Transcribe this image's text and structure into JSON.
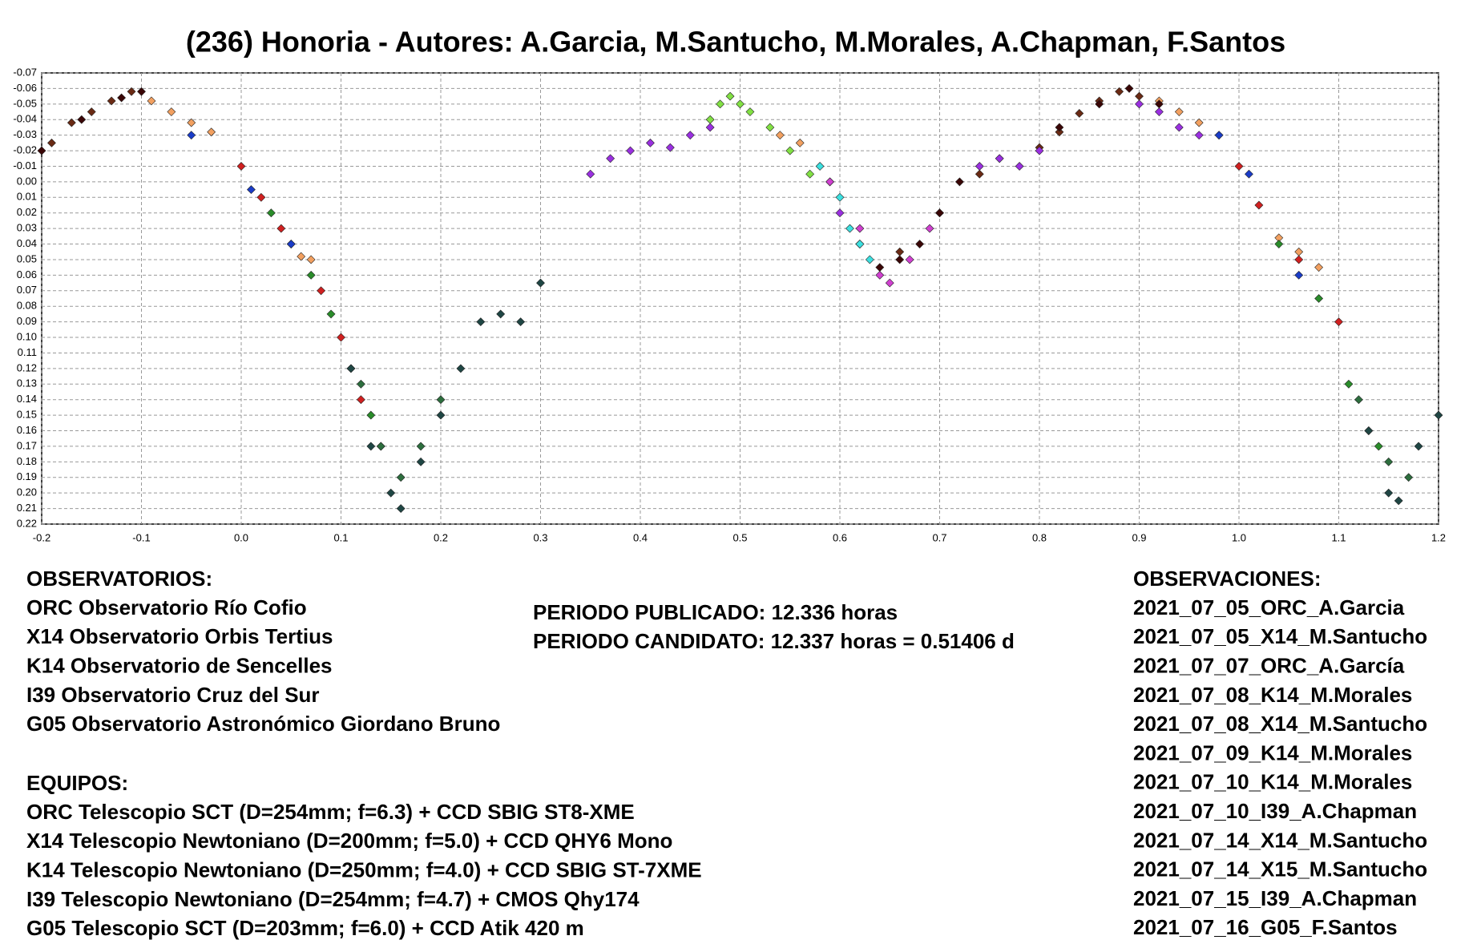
{
  "chart_data": {
    "type": "scatter",
    "title": "(236) Honoria - Autores: A.Garcia, M.Santucho, M.Morales, A.Chapman, F.Santos",
    "xlim": [
      -0.2,
      1.2
    ],
    "xticks": [
      -0.2,
      -0.1,
      {
        "value": 0,
        "label": "0.0"
      },
      0.1,
      0.2,
      0.3,
      0.4,
      0.5,
      0.6,
      0.7,
      0.8,
      0.9,
      {
        "value": 1,
        "label": "1.0"
      },
      1.1,
      1.2
    ],
    "ylim": [
      -0.07,
      0.22
    ],
    "y_inverted": true,
    "grid": true,
    "yticks": [
      -0.07,
      -0.06,
      -0.05,
      -0.04,
      -0.03,
      -0.02,
      -0.01,
      {
        "value": 0,
        "label": "0.00"
      },
      0.01,
      0.02,
      0.03,
      0.04,
      0.05,
      0.06,
      0.07,
      0.08,
      0.09,
      {
        "value": 0.1,
        "label": "0.10"
      },
      0.11,
      0.12,
      0.13,
      0.14,
      0.15,
      0.16,
      0.17,
      0.18,
      0.19,
      {
        "value": 0.2,
        "label": "0.20"
      },
      0.21,
      0.22
    ],
    "series": [
      {
        "name": "2021_07_05_ORC_A.Garcia",
        "color": "#f2a060",
        "x": [
          -0.09,
          -0.07,
          -0.05,
          -0.03,
          0.05,
          0.06,
          0.07,
          0.54,
          0.56,
          0.92,
          0.94,
          0.96,
          0.98,
          1.04,
          1.06,
          1.08
        ],
        "values": [
          -0.052,
          -0.045,
          -0.038,
          -0.032,
          0.04,
          0.048,
          0.05,
          -0.03,
          -0.025,
          -0.052,
          -0.045,
          -0.038,
          -0.03,
          0.036,
          0.045,
          0.055
        ]
      },
      {
        "name": "2021_07_05_X14_M.Santucho",
        "color": "#6a2a14",
        "x": [
          -0.19,
          -0.17,
          -0.15,
          -0.13,
          -0.11,
          0.8,
          0.82,
          0.84,
          0.86,
          0.88,
          0.9,
          0.66,
          0.7,
          0.74
        ],
        "values": [
          -0.025,
          -0.038,
          -0.045,
          -0.052,
          -0.058,
          -0.022,
          -0.032,
          -0.044,
          -0.052,
          -0.058,
          -0.055,
          0.045,
          0.02,
          -0.005
        ]
      },
      {
        "name": "2021_07_07_ORC_A.García",
        "color": "#d02020",
        "x": [
          0,
          0.02,
          0.04,
          0.08,
          0.1,
          0.12,
          0.14,
          1,
          1.02,
          1.06,
          1.1,
          1.13
        ],
        "values": [
          -0.01,
          0.01,
          0.03,
          0.07,
          0.1,
          0.14,
          0.17,
          -0.01,
          0.015,
          0.05,
          0.09,
          0.16
        ]
      },
      {
        "name": "2021_07_08_K14_M.Morales",
        "color": "#2a8c2a",
        "x": [
          0.03,
          0.05,
          0.07,
          0.09,
          0.11,
          0.13,
          1.04,
          1.08,
          1.11,
          1.14
        ],
        "values": [
          0.02,
          0.04,
          0.06,
          0.085,
          0.12,
          0.15,
          0.04,
          0.075,
          0.13,
          0.17
        ]
      },
      {
        "name": "2021_07_08_X14_M.Santucho",
        "color": "#3a0606",
        "x": [
          -0.2,
          -0.16,
          -0.12,
          -0.1,
          0.62,
          0.64,
          0.66,
          0.68,
          0.7,
          0.72,
          0.76,
          0.82,
          0.86,
          0.89,
          0.92
        ],
        "values": [
          -0.02,
          -0.04,
          -0.054,
          -0.058,
          0.04,
          0.055,
          0.05,
          0.04,
          0.02,
          0,
          -0.015,
          -0.035,
          -0.05,
          -0.06,
          -0.05
        ]
      },
      {
        "name": "2021_07_09_K14_M.Morales",
        "color": "#2d6e3e",
        "x": [
          0.12,
          0.14,
          0.16,
          0.18,
          0.2,
          1.12,
          1.15,
          1.17
        ],
        "values": [
          0.13,
          0.17,
          0.19,
          0.17,
          0.14,
          0.14,
          0.18,
          0.19
        ]
      },
      {
        "name": "2021_07_10_K14_M.Morales",
        "color": "#1f4644",
        "x": [
          0.11,
          0.13,
          0.15,
          0.16,
          0.18,
          0.2,
          0.22,
          0.24,
          0.26,
          0.28,
          0.3,
          1.13,
          1.15,
          1.16,
          1.18,
          1.2
        ],
        "values": [
          0.12,
          0.17,
          0.2,
          0.21,
          0.18,
          0.15,
          0.12,
          0.09,
          0.085,
          0.09,
          0.065,
          0.16,
          0.2,
          0.205,
          0.17,
          0.15
        ]
      },
      {
        "name": "2021_07_10_I39_A.Chapman",
        "color": "#1a3cc8",
        "x": [
          -0.05,
          0.01,
          0.05,
          0.98,
          1.01,
          1.06
        ],
        "values": [
          -0.03,
          0.005,
          0.04,
          -0.03,
          -0.005,
          0.06
        ]
      },
      {
        "name": "2021_07_14_X14_M.Santucho",
        "color": "#9a30e0",
        "x": [
          0.35,
          0.37,
          0.39,
          0.41,
          0.43,
          0.45,
          0.47,
          0.6,
          0.62,
          0.74,
          0.76,
          0.78,
          0.8,
          0.9,
          0.92,
          0.94,
          0.96
        ],
        "values": [
          -0.005,
          -0.015,
          -0.02,
          -0.025,
          -0.022,
          -0.03,
          -0.035,
          0.02,
          0.04,
          -0.01,
          -0.015,
          -0.01,
          -0.02,
          -0.05,
          -0.045,
          -0.035,
          -0.03
        ]
      },
      {
        "name": "2021_07_14_X15_M.Santucho",
        "color": "#82e044",
        "x": [
          0.47,
          0.48,
          0.49,
          0.5,
          0.51,
          0.53,
          0.55,
          0.57,
          0.59
        ],
        "values": [
          -0.04,
          -0.05,
          -0.055,
          -0.05,
          -0.045,
          -0.035,
          -0.02,
          -0.005,
          0
        ]
      },
      {
        "name": "2021_07_15_I39_A.Chapman",
        "color": "#3ce0e0",
        "x": [
          0.58,
          0.6,
          0.61,
          0.62,
          0.63
        ],
        "values": [
          -0.01,
          0.01,
          0.03,
          0.04,
          0.05
        ]
      },
      {
        "name": "2021_07_16_G05_F.Santos",
        "color": "#d040d0",
        "x": [
          0.59,
          0.62,
          0.64,
          0.65,
          0.67,
          0.69
        ],
        "values": [
          0,
          0.03,
          0.06,
          0.065,
          0.05,
          0.03
        ]
      }
    ]
  },
  "observatorios": {
    "title": "OBSERVATORIOS:",
    "items": [
      "ORC Observatorio Río Cofio",
      "X14 Observatorio Orbis Tertius",
      "K14 Observatorio de Sencelles",
      "I39 Observatorio Cruz del Sur",
      "G05 Observatorio Astronómico Giordano Bruno"
    ]
  },
  "equipos": {
    "title": "EQUIPOS:",
    "items": [
      "ORC Telescopio SCT (D=254mm; f=6.3) + CCD SBIG ST8-XME",
      "X14 Telescopio Newtoniano (D=200mm; f=5.0) + CCD QHY6 Mono",
      "K14 Telescopio Newtoniano (D=250mm; f=4.0) + CCD SBIG ST-7XME",
      "I39 Telescopio Newtoniano (D=254mm; f=4.7) + CMOS Qhy174",
      "G05 Telescopio SCT (D=203mm; f=6.0) + CCD Atik 420 m"
    ]
  },
  "periodos": [
    "PERIODO PUBLICADO: 12.336 horas",
    "PERIODO CANDIDATO: 12.337 horas = 0.51406 d"
  ],
  "observaciones_title": "OBSERVACIONES:"
}
